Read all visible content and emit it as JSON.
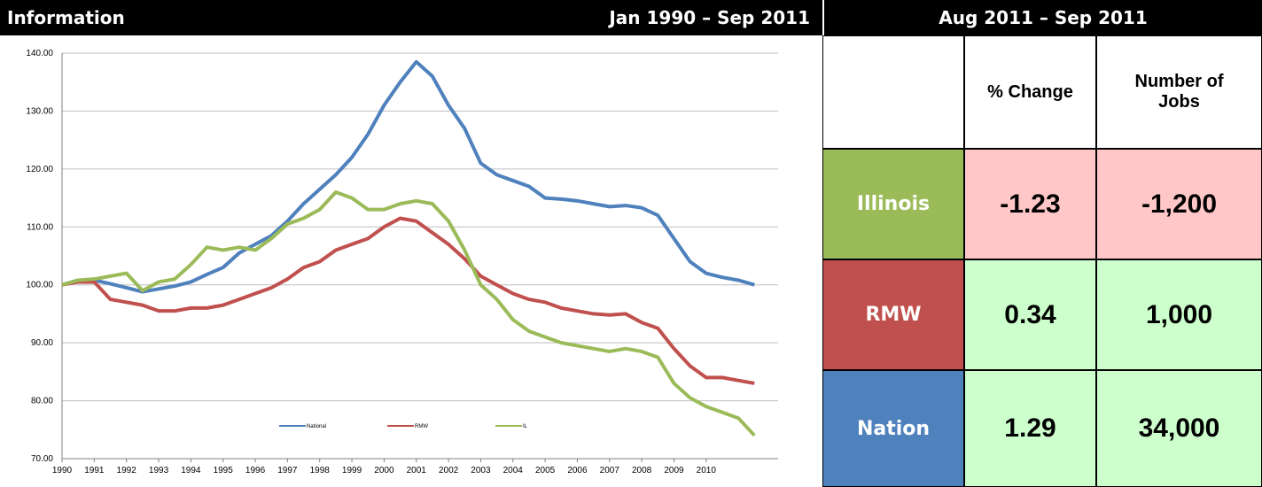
{
  "header": {
    "title": "Information",
    "period": "Jan 1990 – Sep 2011"
  },
  "chart_data": {
    "type": "line",
    "categories": [
      "1990",
      null,
      "1991",
      null,
      "1992",
      null,
      "1993",
      null,
      "1994",
      null,
      "1995",
      null,
      "1996",
      null,
      "1997",
      null,
      "1998",
      null,
      "1999",
      null,
      "2000",
      null,
      "2001",
      null,
      "2002",
      null,
      "2003",
      null,
      "2004",
      null,
      "2005",
      null,
      "2006",
      null,
      "2007",
      null,
      "2008",
      null,
      "2009",
      null,
      "2010",
      null,
      null,
      null
    ],
    "series": [
      {
        "name": "National",
        "color": "#4f81bd",
        "values": [
          100,
          100.8,
          100.8,
          100.2,
          99.5,
          98.8,
          99.3,
          99.8,
          100.5,
          101.8,
          103,
          105.5,
          107,
          108.5,
          111,
          114,
          116.5,
          119,
          122,
          126,
          131,
          135,
          138.5,
          136,
          131,
          127,
          121,
          119,
          118,
          117,
          115,
          114.8,
          114.5,
          114,
          113.5,
          113.7,
          113.3,
          112,
          108,
          104,
          102,
          101.3,
          100.8,
          100
        ]
      },
      {
        "name": "RMW",
        "color": "#c0504d",
        "values": [
          100,
          100.5,
          100.5,
          97.5,
          97,
          96.5,
          95.5,
          95.5,
          96,
          96,
          96.5,
          97.5,
          98.5,
          99.5,
          101,
          103,
          104,
          106,
          107,
          108,
          110,
          111.5,
          111,
          109,
          107,
          104.5,
          101.5,
          100,
          98.5,
          97.5,
          97,
          96,
          95.5,
          95,
          94.8,
          95,
          93.5,
          92.5,
          89,
          86,
          84,
          84,
          83.5,
          83
        ]
      },
      {
        "name": "IL",
        "color": "#9bbb59",
        "values": [
          100,
          100.8,
          101,
          101.5,
          102,
          99,
          100.5,
          101,
          103.5,
          106.5,
          106,
          106.5,
          106,
          108,
          110.5,
          111.5,
          113,
          116,
          115,
          113,
          113,
          114,
          114.5,
          114,
          111,
          106,
          100,
          97.5,
          94,
          92,
          91,
          90,
          89.5,
          89,
          88.5,
          89,
          88.5,
          87.5,
          83,
          80.5,
          79,
          78,
          77,
          74
        ]
      }
    ],
    "ylim": [
      70,
      140
    ],
    "yticks": [
      {
        "value": 70,
        "label": "70.00"
      },
      {
        "value": 80,
        "label": "80.00"
      },
      {
        "value": 90,
        "label": "90.00"
      },
      {
        "value": 100,
        "label": "100.00"
      },
      {
        "value": 110,
        "label": "110.00"
      },
      {
        "value": 120,
        "label": "120.00"
      },
      {
        "value": 130,
        "label": "130.00"
      },
      {
        "value": 140,
        "label": "140.00"
      }
    ],
    "grid": true,
    "legend": "lower center"
  },
  "table": {
    "title": "Aug 2011 – Sep 2011",
    "columns": [
      "% Change",
      "Number of Jobs"
    ],
    "rows": [
      {
        "label": "Illinois",
        "values": [
          "-1.23",
          "-1,200"
        ]
      },
      {
        "label": "RMW",
        "values": [
          "0.34",
          "1,000"
        ]
      },
      {
        "label": "Nation",
        "values": [
          "1.29",
          "34,000"
        ]
      }
    ]
  }
}
